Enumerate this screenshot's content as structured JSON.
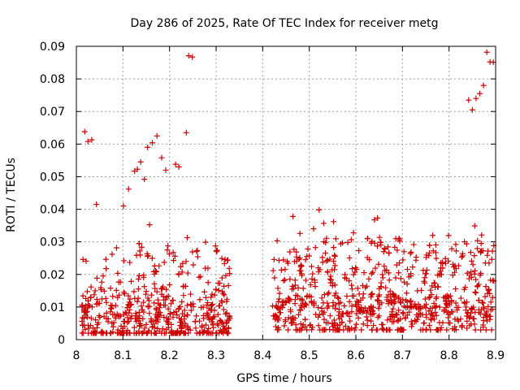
{
  "chart_data": {
    "type": "scatter",
    "title": "Day 286 of 2025, Rate Of TEC Index for receiver metg",
    "xlabel": "GPS time / hours",
    "ylabel": "ROTI / TECUs",
    "xlim": [
      8.0,
      8.9
    ],
    "ylim": [
      0.0,
      0.09
    ],
    "grid": true,
    "marker": "plus",
    "color": "#cc0000",
    "x_ticks": [
      "8",
      "8.1",
      "8.2",
      "8.3",
      "8.4",
      "8.5",
      "8.6",
      "8.7",
      "8.8",
      "8.9"
    ],
    "y_ticks": [
      "0",
      "0.01",
      "0.02",
      "0.03",
      "0.04",
      "0.05",
      "0.06",
      "0.07",
      "0.08",
      "0.09"
    ],
    "outliers": [
      {
        "x": 8.018,
        "y": 0.0638
      },
      {
        "x": 8.025,
        "y": 0.0608
      },
      {
        "x": 8.033,
        "y": 0.0613
      },
      {
        "x": 8.043,
        "y": 0.0415
      },
      {
        "x": 8.101,
        "y": 0.041
      },
      {
        "x": 8.112,
        "y": 0.0462
      },
      {
        "x": 8.125,
        "y": 0.0517
      },
      {
        "x": 8.131,
        "y": 0.0523
      },
      {
        "x": 8.138,
        "y": 0.0545
      },
      {
        "x": 8.146,
        "y": 0.0492
      },
      {
        "x": 8.153,
        "y": 0.059
      },
      {
        "x": 8.163,
        "y": 0.0604
      },
      {
        "x": 8.173,
        "y": 0.0625
      },
      {
        "x": 8.183,
        "y": 0.0558
      },
      {
        "x": 8.192,
        "y": 0.052
      },
      {
        "x": 8.213,
        "y": 0.0538
      },
      {
        "x": 8.22,
        "y": 0.053
      },
      {
        "x": 8.236,
        "y": 0.0635
      },
      {
        "x": 8.241,
        "y": 0.0871
      },
      {
        "x": 8.249,
        "y": 0.0867
      },
      {
        "x": 8.465,
        "y": 0.0378
      },
      {
        "x": 8.521,
        "y": 0.0398
      },
      {
        "x": 8.842,
        "y": 0.0735
      },
      {
        "x": 8.85,
        "y": 0.0705
      },
      {
        "x": 8.858,
        "y": 0.074
      },
      {
        "x": 8.866,
        "y": 0.0755
      },
      {
        "x": 8.874,
        "y": 0.078
      },
      {
        "x": 8.881,
        "y": 0.0882
      },
      {
        "x": 8.888,
        "y": 0.0852
      },
      {
        "x": 8.895,
        "y": 0.0851
      }
    ],
    "clusters": [
      {
        "x_start": 8.012,
        "x_end": 8.33,
        "y_min": 0.002,
        "y_max": 0.036,
        "count": 520,
        "seed": 11
      },
      {
        "x_start": 8.42,
        "x_end": 8.9,
        "y_min": 0.003,
        "y_max": 0.038,
        "count": 760,
        "seed": 29
      }
    ]
  }
}
